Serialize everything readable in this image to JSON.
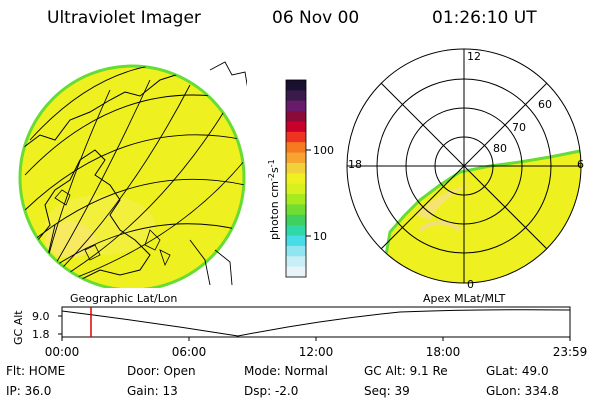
{
  "header": {
    "instrument": "Ultraviolet Imager",
    "date": "06 Nov 00",
    "time": "01:26:10 UT"
  },
  "colorbar": {
    "unit_label": "photon cm",
    "unit_exp1": "-2",
    "unit_mid": "s",
    "unit_exp2": "-1",
    "tick_100": "100",
    "tick_10": "10"
  },
  "left_panel": {
    "label": "Geographic Lat/Lon"
  },
  "right_panel": {
    "label": "Apex MLat/MLT",
    "mlt_12": "12",
    "mlt_18": "18",
    "mlt_6": "6",
    "mlt_0": "0",
    "lat_60": "60",
    "lat_70": "70",
    "lat_80": "80"
  },
  "altitude_plot": {
    "axis_label": "GC Alt",
    "y_high": "9.0",
    "y_low": "1.8",
    "x_ticks": [
      "00:00",
      "06:00",
      "12:00",
      "18:00",
      "23:59"
    ]
  },
  "status": {
    "flt": "Flt: HOME",
    "ip": "IP: 36.0",
    "door": "Door: Open",
    "gain": "Gain: 13",
    "mode": "Mode: Normal",
    "dsp": "Dsp:    -2.0",
    "gc_alt": "GC Alt: 9.1 Re",
    "seq": "Seq: 39",
    "glat": "GLat:  49.0",
    "glon": "GLon: 334.8"
  },
  "colors": {
    "auroral_yellow": "#eef020",
    "auroral_green": "#66dd33",
    "marker_red": "#dd0000"
  }
}
